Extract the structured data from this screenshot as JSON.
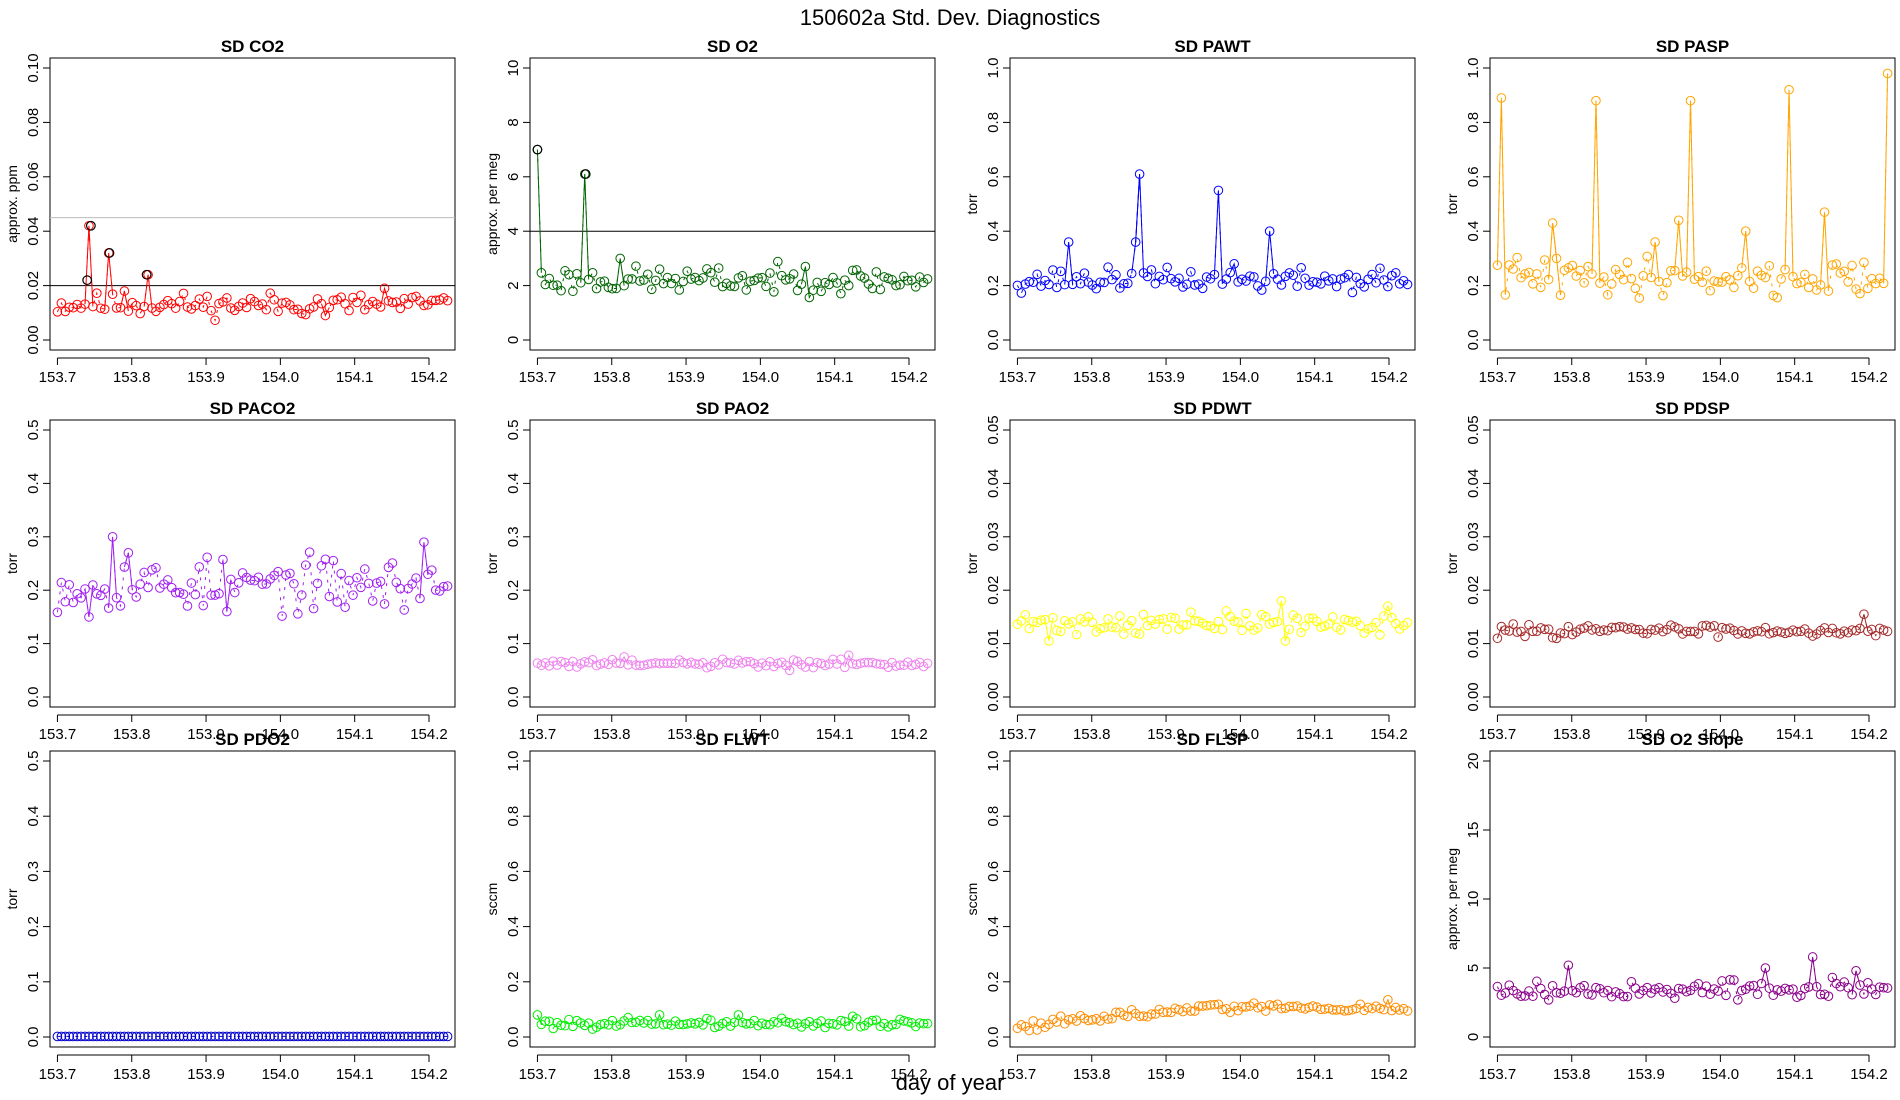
{
  "figure": {
    "title": "150602a   Std. Dev. Diagnostics",
    "xlabel": "day of year"
  },
  "chart_data": [
    {
      "type": "scatter",
      "title": "SD CO2",
      "ylabel": "approx. ppm",
      "color": "#ff0000",
      "ylim": [
        0,
        0.1
      ],
      "yticks": [
        "0.00",
        "0.02",
        "0.04",
        "0.06",
        "0.08",
        "0.10"
      ],
      "hlines": [
        {
          "y": 0.02,
          "color": "#000000"
        },
        {
          "y": 0.045,
          "color": "#bbbbbb"
        }
      ],
      "flagged_points": [
        [
          153.74,
          0.022
        ],
        [
          153.745,
          0.042
        ],
        [
          153.77,
          0.032
        ],
        [
          153.82,
          0.024
        ]
      ],
      "flag_color": "#000000",
      "gen": {
        "seed": 11,
        "base": 0.013,
        "noise": 0.003
      },
      "spikes": [
        [
          153.745,
          0.042
        ],
        [
          153.77,
          0.032
        ],
        [
          153.82,
          0.024
        ],
        [
          153.79,
          0.018
        ],
        [
          154.14,
          0.019
        ],
        [
          154.06,
          0.009
        ]
      ]
    },
    {
      "type": "scatter",
      "title": "SD O2",
      "ylabel": "approx. per meg",
      "color": "#006400",
      "ylim": [
        0,
        10
      ],
      "yticks": [
        "0",
        "2",
        "4",
        "6",
        "8",
        "10"
      ],
      "hlines": [
        {
          "y": 4,
          "color": "#000000"
        }
      ],
      "flagged_points": [
        [
          153.7,
          7.0
        ],
        [
          153.765,
          6.1
        ]
      ],
      "flag_color": "#000000",
      "gen": {
        "seed": 23,
        "base": 2.2,
        "noise": 0.35
      },
      "spikes": [
        [
          153.7,
          7.0
        ],
        [
          153.765,
          6.1
        ],
        [
          153.81,
          3.0
        ],
        [
          154.06,
          2.7
        ]
      ]
    },
    {
      "type": "scatter",
      "title": "SD PAWT",
      "ylabel": "torr",
      "color": "#0000ff",
      "ylim": [
        0,
        1.0
      ],
      "yticks": [
        "0.0",
        "0.2",
        "0.4",
        "0.6",
        "0.8",
        "1.0"
      ],
      "hlines": [],
      "flagged_points": [],
      "flag_color": "#000000",
      "gen": {
        "seed": 37,
        "base": 0.22,
        "noise": 0.03
      },
      "spikes": [
        [
          153.77,
          0.36
        ],
        [
          153.865,
          0.61
        ],
        [
          153.86,
          0.36
        ],
        [
          153.97,
          0.55
        ],
        [
          154.04,
          0.4
        ],
        [
          153.99,
          0.28
        ]
      ]
    },
    {
      "type": "scatter",
      "title": "SD PASP",
      "ylabel": "torr",
      "color": "#ffa500",
      "ylim": [
        0,
        1.0
      ],
      "yticks": [
        "0.0",
        "0.2",
        "0.4",
        "0.6",
        "0.8",
        "1.0"
      ],
      "hlines": [],
      "flagged_points": [],
      "flag_color": "#000000",
      "gen": {
        "seed": 41,
        "base": 0.23,
        "noise": 0.05
      },
      "spikes": [
        [
          153.705,
          0.89
        ],
        [
          153.83,
          0.88
        ],
        [
          153.96,
          0.88
        ],
        [
          154.09,
          0.92
        ],
        [
          154.225,
          0.98
        ],
        [
          153.775,
          0.43
        ],
        [
          153.945,
          0.44
        ],
        [
          154.14,
          0.47
        ],
        [
          154.035,
          0.4
        ],
        [
          153.91,
          0.36
        ],
        [
          153.78,
          0.3
        ]
      ]
    },
    {
      "type": "scatter",
      "title": "SD PACO2",
      "ylabel": "torr",
      "color": "#a020f0",
      "ylim": [
        0,
        0.5
      ],
      "yticks": [
        "0.0",
        "0.1",
        "0.2",
        "0.3",
        "0.4",
        "0.5"
      ],
      "hlines": [],
      "flagged_points": [],
      "flag_color": "#000000",
      "gen": {
        "seed": 53,
        "base": 0.21,
        "noise": 0.035
      },
      "spikes": [
        [
          153.775,
          0.3
        ],
        [
          154.195,
          0.29
        ],
        [
          153.795,
          0.27
        ],
        [
          153.93,
          0.16
        ],
        [
          153.74,
          0.15
        ]
      ]
    },
    {
      "type": "scatter",
      "title": "SD PAO2",
      "ylabel": "torr",
      "color": "#ee82ee",
      "ylim": [
        0,
        0.5
      ],
      "yticks": [
        "0.0",
        "0.1",
        "0.2",
        "0.3",
        "0.4",
        "0.5"
      ],
      "hlines": [],
      "flagged_points": [],
      "flag_color": "#000000",
      "gen": {
        "seed": 61,
        "base": 0.062,
        "noise": 0.006
      },
      "spikes": [
        [
          153.815,
          0.075
        ],
        [
          154.12,
          0.078
        ],
        [
          154.04,
          0.05
        ]
      ]
    },
    {
      "type": "scatter",
      "title": "SD PDWT",
      "ylabel": "torr",
      "color": "#ffff00",
      "ylim": [
        0,
        0.05
      ],
      "yticks": [
        "0.00",
        "0.01",
        "0.02",
        "0.03",
        "0.04",
        "0.05"
      ],
      "hlines": [],
      "flagged_points": [],
      "flag_color": "#000000",
      "gen": {
        "seed": 71,
        "base": 0.0138,
        "noise": 0.0015
      },
      "spikes": [
        [
          154.055,
          0.018
        ],
        [
          153.74,
          0.0105
        ],
        [
          154.06,
          0.0105
        ],
        [
          154.2,
          0.017
        ]
      ]
    },
    {
      "type": "scatter",
      "title": "SD PDSP",
      "ylabel": "torr",
      "color": "#a52a2a",
      "ylim": [
        0,
        0.05
      ],
      "yticks": [
        "0.00",
        "0.01",
        "0.02",
        "0.03",
        "0.04",
        "0.05"
      ],
      "hlines": [],
      "flagged_points": [],
      "flag_color": "#000000",
      "gen": {
        "seed": 83,
        "base": 0.0125,
        "noise": 0.0008
      },
      "spikes": [
        [
          154.195,
          0.0155
        ],
        [
          153.7,
          0.011
        ]
      ]
    },
    {
      "type": "scatter",
      "title": "SD PDO2",
      "ylabel": "torr",
      "color": "#0000cd",
      "ylim": [
        0,
        0.5
      ],
      "yticks": [
        "0.0",
        "0.1",
        "0.2",
        "0.3",
        "0.4",
        "0.5"
      ],
      "hlines": [],
      "flagged_points": [],
      "flag_color": "#000000",
      "gen": {
        "seed": 97,
        "base": 0.001,
        "noise": 0.0
      },
      "spikes": []
    },
    {
      "type": "scatter",
      "title": "SD FLWT",
      "ylabel": "sccm",
      "color": "#00ee00",
      "ylim": [
        0,
        1.0
      ],
      "yticks": [
        "0.0",
        "0.2",
        "0.4",
        "0.6",
        "0.8",
        "1.0"
      ],
      "hlines": [],
      "flagged_points": [],
      "flag_color": "#000000",
      "gen": {
        "seed": 101,
        "base": 0.05,
        "noise": 0.012
      },
      "spikes": [
        [
          153.865,
          0.08
        ],
        [
          153.97,
          0.08
        ],
        [
          154.125,
          0.075
        ],
        [
          153.7,
          0.08
        ]
      ]
    },
    {
      "type": "scatter",
      "title": "SD FLSP",
      "ylabel": "sccm",
      "color": "#ff8c00",
      "ylim": [
        0,
        1.0
      ],
      "yticks": [
        "0.0",
        "0.2",
        "0.4",
        "0.6",
        "0.8",
        "1.0"
      ],
      "hlines": [],
      "flagged_points": [],
      "flag_color": "#000000",
      "gen": {
        "seed": 113,
        "base": 0.09,
        "noise": 0.012,
        "trend": [
          0.04,
          0.11,
          0.1
        ]
      },
      "spikes": [
        [
          154.2,
          0.135
        ]
      ]
    },
    {
      "type": "scatter",
      "title": "SD O2 Slope",
      "ylabel": "approx. per meg",
      "color": "#8b008b",
      "ylim": [
        0,
        20
      ],
      "yticks": [
        "0",
        "5",
        "10",
        "15",
        "20"
      ],
      "hlines": [],
      "flagged_points": [],
      "flag_color": "#000000",
      "gen": {
        "seed": 127,
        "base": 3.4,
        "noise": 0.5
      },
      "spikes": [
        [
          154.125,
          5.8
        ],
        [
          153.795,
          5.2
        ],
        [
          154.06,
          5.0
        ],
        [
          154.18,
          4.8
        ]
      ]
    }
  ],
  "x_axis": {
    "xlim": [
      153.69,
      154.235
    ],
    "ticks": [
      153.7,
      153.8,
      153.9,
      154.0,
      154.1,
      154.2
    ],
    "tick_labels": [
      "153.7",
      "153.8",
      "153.9",
      "154.0",
      "154.1",
      "154.2"
    ],
    "npoints": 100
  }
}
